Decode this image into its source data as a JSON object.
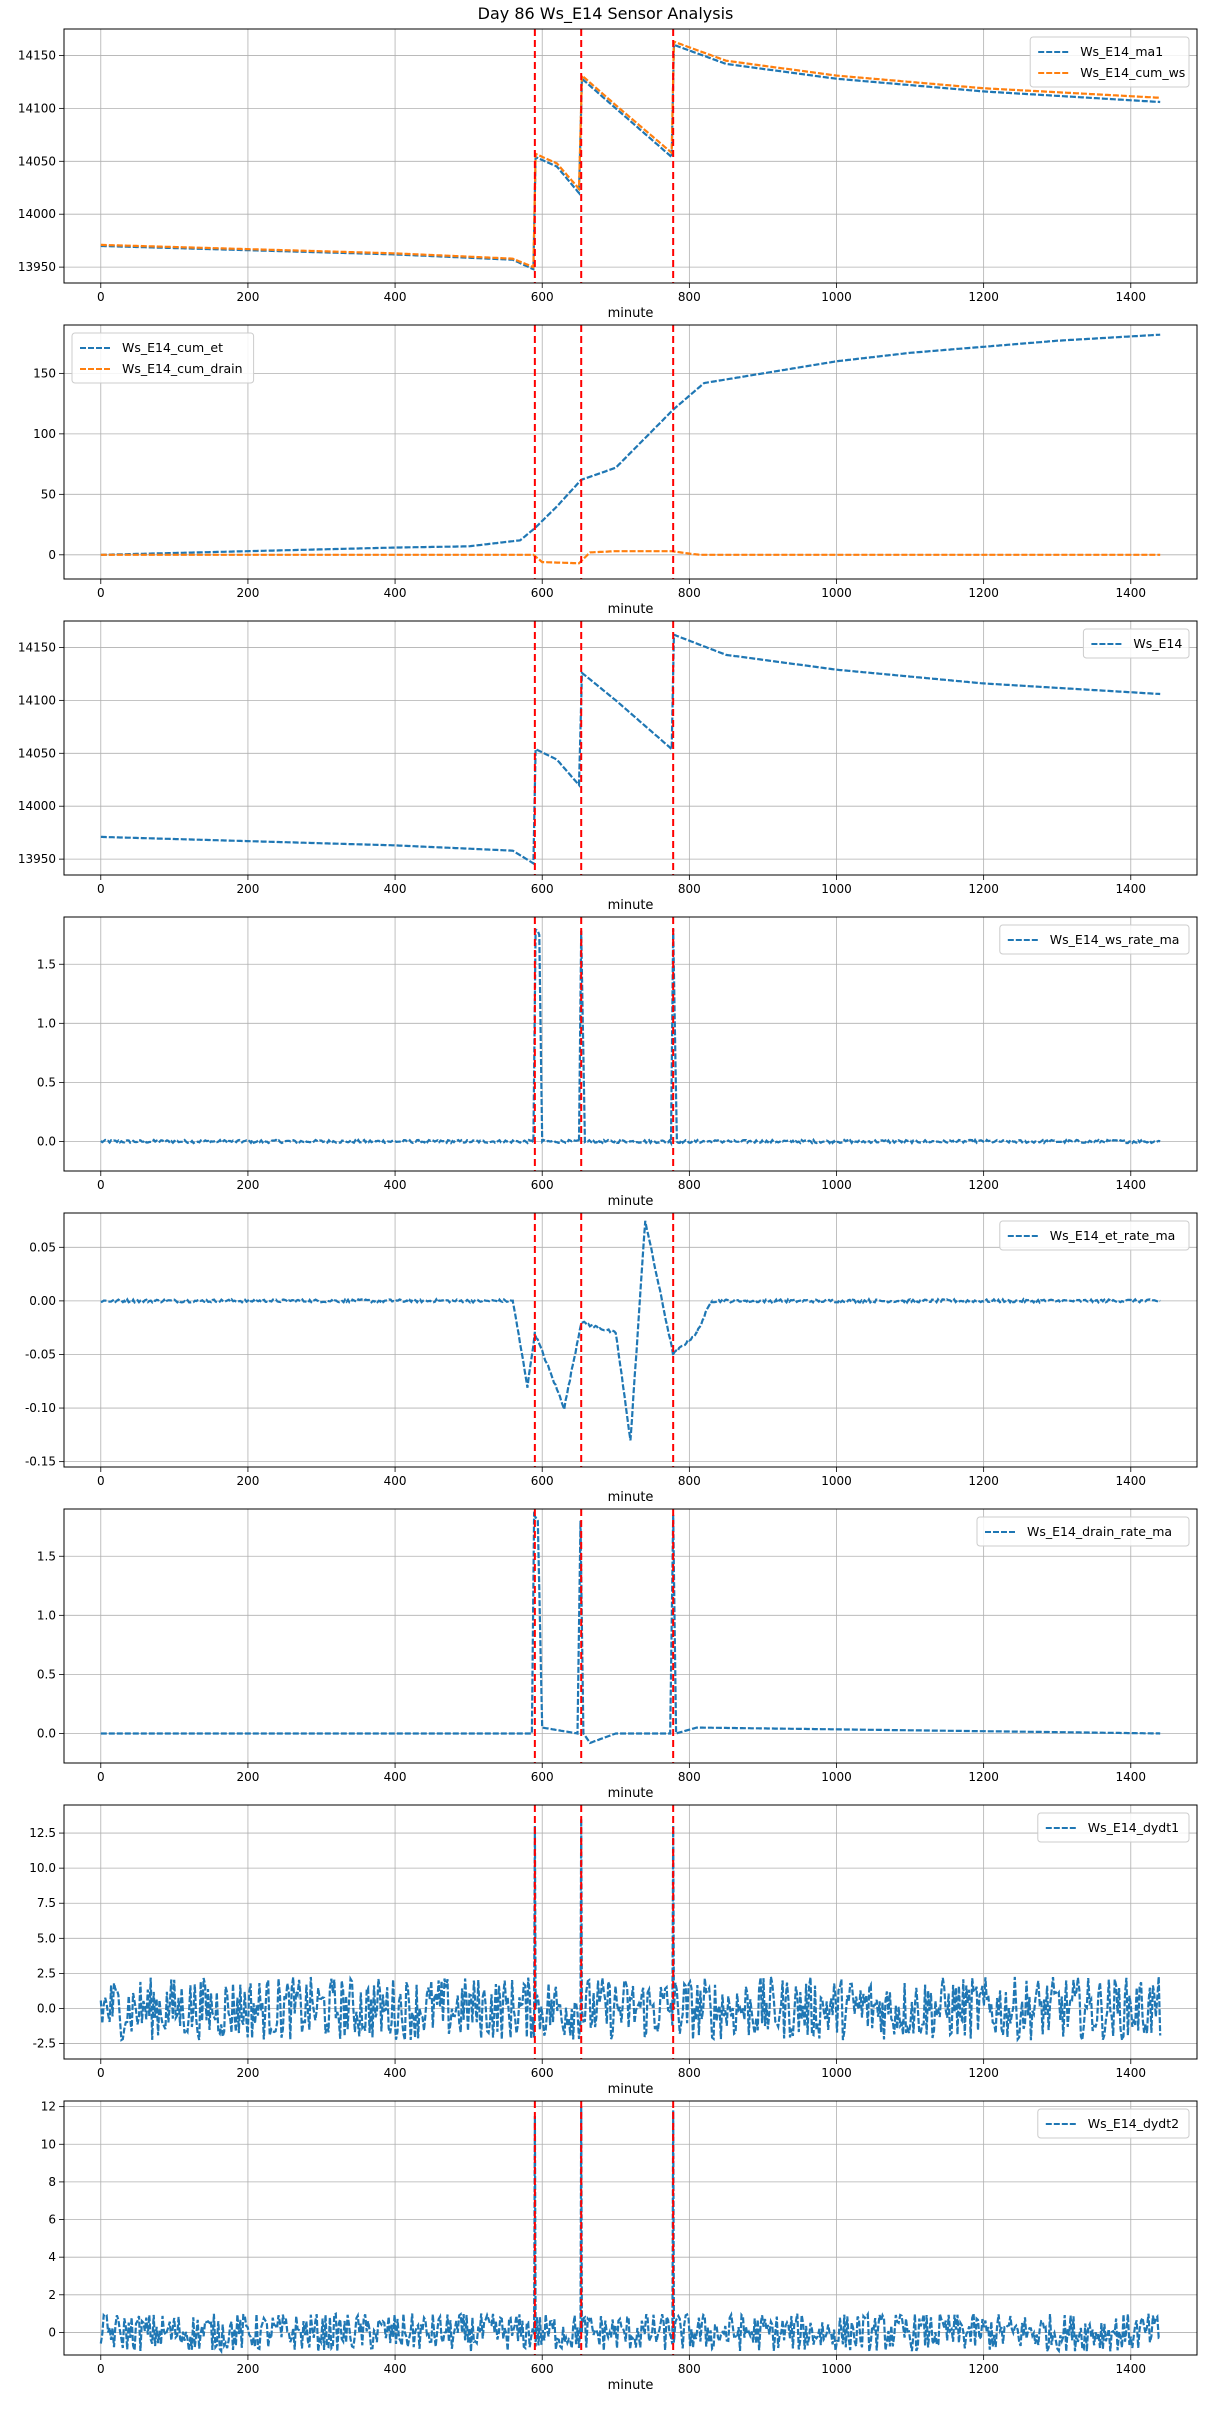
{
  "figure": {
    "title": "Day 86 Ws_E14 Sensor Analysis"
  },
  "colors": {
    "series_blue": "#1f77b4",
    "series_orange": "#ff7f0e",
    "event_line": "#ff0000",
    "grid": "#b0b0b0"
  },
  "chart_data": [
    {
      "type": "line",
      "xlabel": "minute",
      "xlim": [
        -50,
        1490
      ],
      "xticks": [
        0,
        200,
        400,
        600,
        800,
        1000,
        1200,
        1400
      ],
      "ylim": [
        13935,
        14175
      ],
      "yticks": [
        13950,
        14000,
        14050,
        14100,
        14150
      ],
      "ytick_labels": [
        "13950",
        "14000",
        "14050",
        "14100",
        "14150"
      ],
      "legend_position": "top-right",
      "events": [
        590,
        653,
        778
      ],
      "series": [
        {
          "name": "Ws_E14_ma1",
          "color": "#1f77b4",
          "style": "dashed",
          "points": [
            [
              0,
              13970
            ],
            [
              200,
              13966
            ],
            [
              400,
              13962
            ],
            [
              560,
              13957
            ],
            [
              588,
              13948
            ],
            [
              591,
              14054
            ],
            [
              620,
              14045
            ],
            [
              650,
              14020
            ],
            [
              654,
              14128
            ],
            [
              700,
              14100
            ],
            [
              776,
              14054
            ],
            [
              779,
              14160
            ],
            [
              850,
              14142
            ],
            [
              1000,
              14128
            ],
            [
              1200,
              14116
            ],
            [
              1440,
              14106
            ]
          ]
        },
        {
          "name": "Ws_E14_cum_ws",
          "color": "#ff7f0e",
          "style": "dashed",
          "points": [
            [
              0,
              13971
            ],
            [
              200,
              13967
            ],
            [
              400,
              13963
            ],
            [
              560,
              13958
            ],
            [
              588,
              13950
            ],
            [
              591,
              14057
            ],
            [
              620,
              14048
            ],
            [
              650,
              14024
            ],
            [
              654,
              14131
            ],
            [
              700,
              14103
            ],
            [
              776,
              14058
            ],
            [
              779,
              14163
            ],
            [
              850,
              14145
            ],
            [
              1000,
              14131
            ],
            [
              1200,
              14119
            ],
            [
              1440,
              14110
            ]
          ]
        }
      ]
    },
    {
      "type": "line",
      "xlabel": "minute",
      "xlim": [
        -50,
        1490
      ],
      "xticks": [
        0,
        200,
        400,
        600,
        800,
        1000,
        1200,
        1400
      ],
      "ylim": [
        -20,
        190
      ],
      "yticks": [
        0,
        50,
        100,
        150
      ],
      "ytick_labels": [
        "0",
        "50",
        "100",
        "150"
      ],
      "legend_position": "top-left",
      "events": [
        590,
        653,
        778
      ],
      "series": [
        {
          "name": "Ws_E14_cum_et",
          "color": "#1f77b4",
          "style": "dashed",
          "points": [
            [
              0,
              0
            ],
            [
              200,
              3
            ],
            [
              400,
              6
            ],
            [
              500,
              7
            ],
            [
              570,
              12
            ],
            [
              590,
              22
            ],
            [
              620,
              40
            ],
            [
              653,
              62
            ],
            [
              700,
              72
            ],
            [
              778,
              120
            ],
            [
              820,
              142
            ],
            [
              900,
              150
            ],
            [
              1000,
              160
            ],
            [
              1100,
              167
            ],
            [
              1200,
              172
            ],
            [
              1300,
              177
            ],
            [
              1440,
              182
            ]
          ]
        },
        {
          "name": "Ws_E14_cum_drain",
          "color": "#ff7f0e",
          "style": "dashed",
          "points": [
            [
              0,
              0
            ],
            [
              588,
              0
            ],
            [
              600,
              -6
            ],
            [
              650,
              -7
            ],
            [
              665,
              2
            ],
            [
              700,
              3
            ],
            [
              776,
              3
            ],
            [
              800,
              1
            ],
            [
              815,
              0
            ],
            [
              1440,
              0
            ]
          ]
        }
      ]
    },
    {
      "type": "line",
      "xlabel": "minute",
      "xlim": [
        -50,
        1490
      ],
      "xticks": [
        0,
        200,
        400,
        600,
        800,
        1000,
        1200,
        1400
      ],
      "ylim": [
        13935,
        14175
      ],
      "yticks": [
        13950,
        14000,
        14050,
        14100,
        14150
      ],
      "ytick_labels": [
        "13950",
        "14000",
        "14050",
        "14100",
        "14150"
      ],
      "legend_position": "top-right",
      "events": [
        590,
        653,
        778
      ],
      "series": [
        {
          "name": "Ws_E14",
          "color": "#1f77b4",
          "style": "dashed",
          "points": [
            [
              0,
              13971
            ],
            [
              200,
              13967
            ],
            [
              400,
              13963
            ],
            [
              560,
              13958
            ],
            [
              588,
              13946
            ],
            [
              591,
              14054
            ],
            [
              620,
              14044
            ],
            [
              650,
              14020
            ],
            [
              654,
              14126
            ],
            [
              700,
              14100
            ],
            [
              776,
              14054
            ],
            [
              779,
              14162
            ],
            [
              850,
              14143
            ],
            [
              1000,
              14129
            ],
            [
              1200,
              14116
            ],
            [
              1440,
              14106
            ]
          ]
        }
      ]
    },
    {
      "type": "line",
      "xlabel": "minute",
      "xlim": [
        -50,
        1490
      ],
      "xticks": [
        0,
        200,
        400,
        600,
        800,
        1000,
        1200,
        1400
      ],
      "ylim": [
        -0.25,
        1.9
      ],
      "yticks": [
        0.0,
        0.5,
        1.0,
        1.5
      ],
      "ytick_labels": [
        "0.0",
        "0.5",
        "1.0",
        "1.5"
      ],
      "legend_position": "top-right",
      "events": [
        590,
        653,
        778
      ],
      "series": [
        {
          "name": "Ws_E14_ws_rate_ma",
          "color": "#1f77b4",
          "style": "dashed",
          "points": [
            [
              0,
              0
            ],
            [
              588,
              0
            ],
            [
              591,
              1.8
            ],
            [
              596,
              1.75
            ],
            [
              600,
              0
            ],
            [
              650,
              0
            ],
            [
              653,
              1.78
            ],
            [
              658,
              0
            ],
            [
              775,
              0
            ],
            [
              778,
              1.8
            ],
            [
              783,
              0
            ],
            [
              1440,
              0
            ]
          ]
        }
      ]
    },
    {
      "type": "line",
      "xlabel": "minute",
      "xlim": [
        -50,
        1490
      ],
      "xticks": [
        0,
        200,
        400,
        600,
        800,
        1000,
        1200,
        1400
      ],
      "ylim": [
        -0.155,
        0.082
      ],
      "yticks": [
        -0.15,
        -0.1,
        -0.05,
        0.0,
        0.05
      ],
      "ytick_labels": [
        "-0.15",
        "-0.10",
        "-0.05",
        "0.00",
        "0.05"
      ],
      "legend_position": "top-right",
      "events": [
        590,
        653,
        778
      ],
      "series": [
        {
          "name": "Ws_E14_et_rate_ma",
          "color": "#1f77b4",
          "style": "dashed",
          "points": [
            [
              0,
              0
            ],
            [
              560,
              0
            ],
            [
              580,
              -0.08
            ],
            [
              590,
              -0.03
            ],
            [
              630,
              -0.1
            ],
            [
              653,
              -0.02
            ],
            [
              700,
              -0.03
            ],
            [
              720,
              -0.13
            ],
            [
              740,
              0.075
            ],
            [
              778,
              -0.05
            ],
            [
              810,
              -0.03
            ],
            [
              830,
              0
            ],
            [
              1440,
              0
            ]
          ]
        }
      ]
    },
    {
      "type": "line",
      "xlabel": "minute",
      "xlim": [
        -50,
        1490
      ],
      "xticks": [
        0,
        200,
        400,
        600,
        800,
        1000,
        1200,
        1400
      ],
      "ylim": [
        -0.25,
        1.9
      ],
      "yticks": [
        0.0,
        0.5,
        1.0,
        1.5
      ],
      "ytick_labels": [
        "0.0",
        "0.5",
        "1.0",
        "1.5"
      ],
      "legend_position": "top-right",
      "events": [
        590,
        653,
        778
      ],
      "series": [
        {
          "name": "Ws_E14_drain_rate_ma",
          "color": "#1f77b4",
          "style": "dashed",
          "points": [
            [
              0,
              0
            ],
            [
              586,
              0
            ],
            [
              589,
              1.85
            ],
            [
              594,
              1.8
            ],
            [
              600,
              0.05
            ],
            [
              648,
              0
            ],
            [
              652,
              1.8
            ],
            [
              656,
              0
            ],
            [
              665,
              -0.08
            ],
            [
              700,
              0
            ],
            [
              774,
              0
            ],
            [
              778,
              1.85
            ],
            [
              782,
              0
            ],
            [
              810,
              0.05
            ],
            [
              1440,
              0
            ]
          ]
        }
      ]
    },
    {
      "type": "line",
      "xlabel": "minute",
      "xlim": [
        -50,
        1490
      ],
      "xticks": [
        0,
        200,
        400,
        600,
        800,
        1000,
        1200,
        1400
      ],
      "ylim": [
        -3.6,
        14.5
      ],
      "yticks": [
        -2.5,
        0.0,
        2.5,
        5.0,
        7.5,
        10.0,
        12.5
      ],
      "ytick_labels": [
        "-2.5",
        "0.0",
        "2.5",
        "5.0",
        "7.5",
        "10.0",
        "12.5"
      ],
      "legend_position": "top-right",
      "events": [
        590,
        653,
        778
      ],
      "series": [
        {
          "name": "Ws_E14_dydt1",
          "color": "#1f77b4",
          "style": "dashed",
          "points": [
            [
              0,
              0
            ],
            [
              589,
              0
            ],
            [
              590,
              13
            ],
            [
              591,
              0
            ],
            [
              652,
              0
            ],
            [
              653,
              13.5
            ],
            [
              654,
              0
            ],
            [
              777,
              0
            ],
            [
              778,
              13
            ],
            [
              779,
              0
            ],
            [
              1440,
              0
            ]
          ]
        }
      ]
    },
    {
      "type": "line",
      "xlabel": "minute",
      "xlim": [
        -50,
        1490
      ],
      "xticks": [
        0,
        200,
        400,
        600,
        800,
        1000,
        1200,
        1400
      ],
      "ylim": [
        -1.2,
        12.3
      ],
      "yticks": [
        0,
        2,
        4,
        6,
        8,
        10,
        12
      ],
      "ytick_labels": [
        "0",
        "2",
        "4",
        "6",
        "8",
        "10",
        "12"
      ],
      "legend_position": "top-right",
      "events": [
        590,
        653,
        778
      ],
      "series": [
        {
          "name": "Ws_E14_dydt2",
          "color": "#1f77b4",
          "style": "dashed",
          "points": [
            [
              0,
              0
            ],
            [
              589,
              0
            ],
            [
              590,
              11.5
            ],
            [
              591,
              0
            ],
            [
              652,
              0
            ],
            [
              653,
              12
            ],
            [
              654,
              0
            ],
            [
              777,
              0
            ],
            [
              778,
              11.8
            ],
            [
              779,
              0
            ],
            [
              1440,
              0
            ]
          ]
        }
      ]
    }
  ]
}
